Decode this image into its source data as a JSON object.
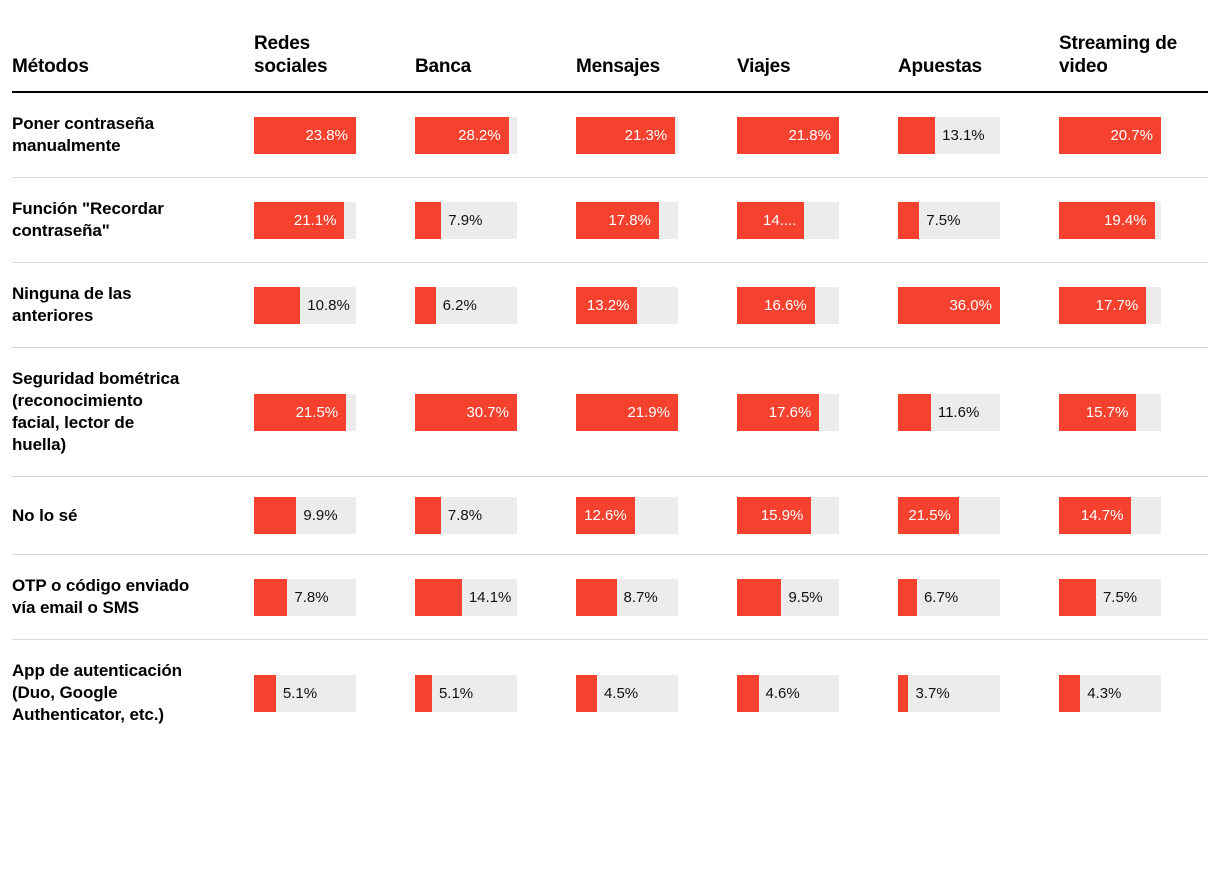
{
  "chart_data": {
    "type": "bar",
    "variant": "bar-table",
    "title": "",
    "method_column_header": "Métodos",
    "categories": [
      "Redes sociales",
      "Banca",
      "Mensajes",
      "Viajes",
      "Apuestas",
      "Streaming de video"
    ],
    "rows": [
      {
        "method": "Poner contraseña manualmente",
        "values": [
          23.8,
          28.2,
          21.3,
          21.8,
          13.1,
          20.7
        ],
        "labels": [
          "23.8%",
          "28.2%",
          "21.3%",
          "21.8%",
          "13.1%",
          "20.7%"
        ]
      },
      {
        "method": "Función \"Recordar contraseña\"",
        "values": [
          21.1,
          7.9,
          17.8,
          14.4,
          7.5,
          19.4
        ],
        "labels": [
          "21.1%",
          "7.9%",
          "17.8%",
          "14....",
          "7.5%",
          "19.4%"
        ]
      },
      {
        "method": "Ninguna de las anteriores",
        "values": [
          10.8,
          6.2,
          13.2,
          16.6,
          36.0,
          17.7
        ],
        "labels": [
          "10.8%",
          "6.2%",
          "13.2%",
          "16.6%",
          "36.0%",
          "17.7%"
        ]
      },
      {
        "method": "Seguridad bométrica (reconocimiento facial, lector de huella)",
        "values": [
          21.5,
          30.7,
          21.9,
          17.6,
          11.6,
          15.7
        ],
        "labels": [
          "21.5%",
          "30.7%",
          "21.9%",
          "17.6%",
          "11.6%",
          "15.7%"
        ]
      },
      {
        "method": "No lo sé",
        "values": [
          9.9,
          7.8,
          12.6,
          15.9,
          21.5,
          14.7
        ],
        "labels": [
          "9.9%",
          "7.8%",
          "12.6%",
          "15.9%",
          "21.5%",
          "14.7%"
        ]
      },
      {
        "method": "OTP o código enviado vía email o SMS",
        "values": [
          7.8,
          14.1,
          8.7,
          9.5,
          6.7,
          7.5
        ],
        "labels": [
          "7.8%",
          "14.1%",
          "8.7%",
          "9.5%",
          "6.7%",
          "7.5%"
        ]
      },
      {
        "method": "App de autenticación (Duo, Google Authenticator, etc.)",
        "values": [
          5.1,
          5.1,
          4.5,
          4.6,
          3.7,
          4.3
        ],
        "labels": [
          "5.1%",
          "5.1%",
          "4.5%",
          "4.6%",
          "3.7%",
          "4.3%"
        ]
      }
    ],
    "colors": {
      "bar": "#f5412d",
      "track": "#ececec",
      "inside_label": "#ffffff",
      "outside_label": "#111111",
      "header_rule": "#000000",
      "row_rule": "#d9d9d9"
    },
    "layout": {
      "orientation": "horizontal",
      "scale": "per-column-max",
      "inside_label_threshold_pct": 50,
      "grid": false,
      "legend": false
    }
  }
}
